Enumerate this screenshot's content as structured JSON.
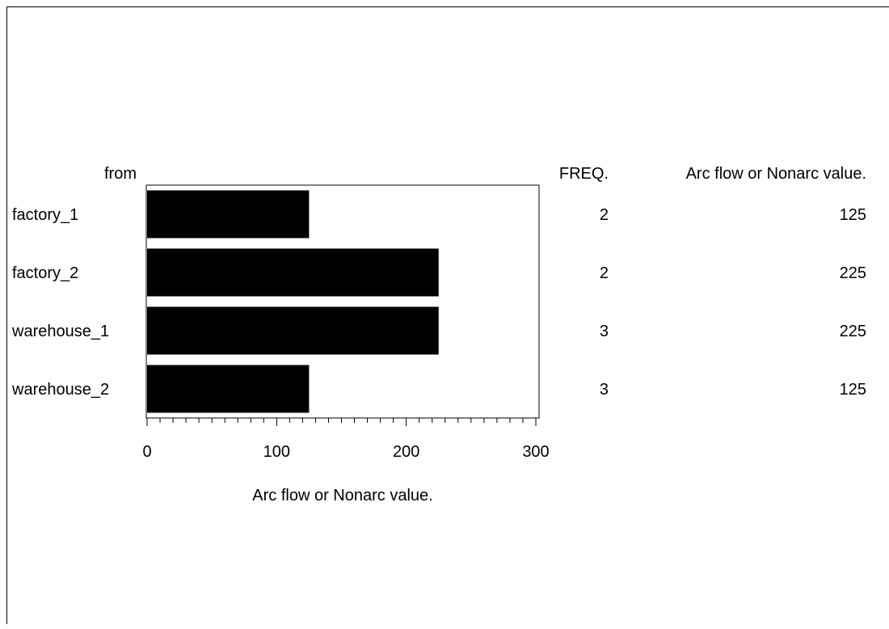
{
  "chart_data": {
    "type": "bar",
    "orientation": "horizontal",
    "category_header": "from",
    "categories": [
      "factory_1",
      "factory_2",
      "warehouse_1",
      "warehouse_2"
    ],
    "values": [
      125,
      225,
      225,
      125
    ],
    "xlabel": "Arc flow or Nonarc value.",
    "xlim": [
      0,
      300
    ],
    "major_ticks": [
      0,
      100,
      200,
      300
    ],
    "minor_tick_step": 10,
    "bar_color": "#000000",
    "grid": false,
    "table": {
      "headers": [
        "FREQ.",
        "Arc flow or Nonarc value."
      ],
      "freq": [
        2,
        2,
        3,
        3
      ],
      "value": [
        125,
        225,
        225,
        125
      ]
    }
  }
}
